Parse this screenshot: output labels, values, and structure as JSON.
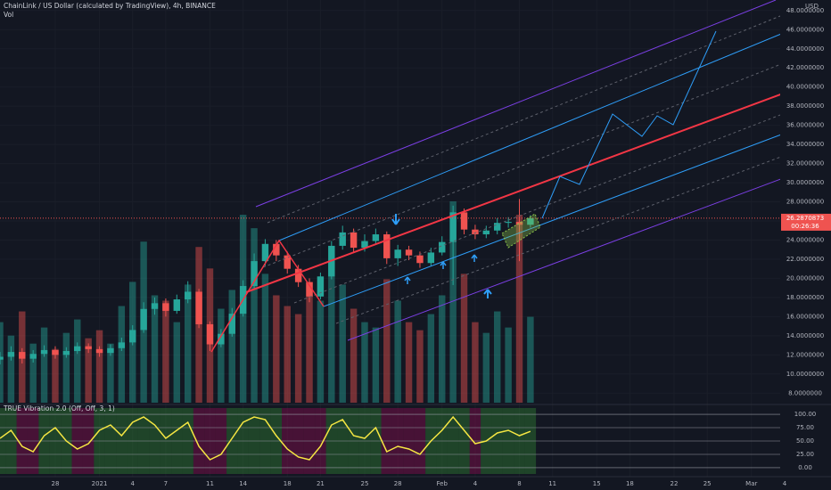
{
  "chart_data": {
    "type": "candlestick",
    "title": "ChainLink / US Dollar (calculated by TradingView), 4h, BINANCE",
    "volume_label": "Vol",
    "currency": "USD",
    "xlim": [
      -5,
      70.2
    ],
    "xticks": [
      {
        "value": 0,
        "label": "28"
      },
      {
        "value": 4,
        "label": "2021"
      },
      {
        "value": 7,
        "label": "4"
      },
      {
        "value": 10,
        "label": "7"
      },
      {
        "value": 14,
        "label": "11"
      },
      {
        "value": 17,
        "label": "14"
      },
      {
        "value": 21,
        "label": "18"
      },
      {
        "value": 24,
        "label": "21"
      },
      {
        "value": 28,
        "label": "25"
      },
      {
        "value": 31,
        "label": "28"
      },
      {
        "value": 35,
        "label": "Feb"
      },
      {
        "value": 38,
        "label": "4"
      },
      {
        "value": 42,
        "label": "8"
      },
      {
        "value": 45,
        "label": "11"
      },
      {
        "value": 49,
        "label": "15"
      },
      {
        "value": 52,
        "label": "18"
      },
      {
        "value": 56,
        "label": "22"
      },
      {
        "value": 59,
        "label": "25"
      },
      {
        "value": 63,
        "label": "Mar"
      },
      {
        "value": 66,
        "label": "4"
      }
    ],
    "ylim": [
      7,
      49.1
    ],
    "yticks": [
      {
        "value": 8,
        "label": "8.0000000"
      },
      {
        "value": 10,
        "label": "10.0000000"
      },
      {
        "value": 12,
        "label": "12.0000000"
      },
      {
        "value": 14,
        "label": "14.0000000"
      },
      {
        "value": 16,
        "label": "16.0000000"
      },
      {
        "value": 18,
        "label": "18.0000000"
      },
      {
        "value": 20,
        "label": "20.0000000"
      },
      {
        "value": 22,
        "label": "22.0000000"
      },
      {
        "value": 24,
        "label": "24.0000000"
      },
      {
        "value": 26,
        "label": "26.0000000"
      },
      {
        "value": 28,
        "label": "28.0000000"
      },
      {
        "value": 30,
        "label": "30.0000000"
      },
      {
        "value": 32,
        "label": "32.0000000"
      },
      {
        "value": 34,
        "label": "34.0000000"
      },
      {
        "value": 36,
        "label": "36.0000000"
      },
      {
        "value": 38,
        "label": "38.0000000"
      },
      {
        "value": 40,
        "label": "40.0000000"
      },
      {
        "value": 42,
        "label": "42.0000000"
      },
      {
        "value": 44,
        "label": "44.0000000"
      },
      {
        "value": 46,
        "label": "46.0000000"
      },
      {
        "value": 48,
        "label": "48.0000000"
      }
    ],
    "x": [
      -5,
      -4,
      -3,
      -2,
      -1,
      0,
      1,
      2,
      3,
      4,
      5,
      6,
      7,
      8,
      9,
      10,
      11,
      12,
      13,
      14,
      15,
      16,
      17,
      18,
      19,
      20,
      21,
      22,
      23,
      24,
      25,
      26,
      27,
      28,
      29,
      30,
      31,
      32,
      33,
      34,
      35,
      36,
      37,
      38,
      39,
      40,
      41,
      42,
      43
    ],
    "open": [
      11.5,
      11.8,
      12.3,
      11.6,
      12.1,
      12.5,
      12.0,
      12.4,
      12.9,
      12.6,
      12.2,
      12.7,
      13.3,
      14.6,
      16.8,
      17.4,
      16.6,
      17.8,
      18.6,
      15.2,
      13.1,
      14.2,
      16.3,
      19.2,
      21.8,
      23.6,
      22.4,
      21.0,
      19.6,
      18.1,
      20.2,
      23.4,
      24.8,
      23.2,
      23.9,
      24.6,
      22.1,
      23.0,
      22.4,
      21.6,
      22.7,
      23.8,
      26.9,
      25.1,
      24.6,
      25.0,
      25.8,
      25.9,
      25.6
    ],
    "high": [
      12.3,
      12.9,
      12.7,
      12.5,
      13.0,
      12.9,
      12.8,
      13.3,
      13.2,
      12.9,
      13.1,
      13.8,
      15.1,
      17.5,
      18.0,
      17.9,
      18.3,
      19.7,
      18.9,
      15.5,
      14.7,
      16.9,
      19.8,
      22.6,
      24.1,
      24.0,
      22.8,
      21.4,
      20.0,
      20.6,
      23.9,
      25.5,
      25.2,
      24.6,
      25.2,
      24.9,
      23.5,
      23.4,
      22.8,
      23.2,
      24.4,
      27.6,
      27.3,
      25.6,
      25.5,
      26.3,
      26.4,
      28.3,
      26.6
    ],
    "low": [
      11.0,
      11.4,
      11.1,
      11.2,
      11.8,
      11.6,
      11.7,
      12.1,
      12.2,
      11.8,
      11.9,
      12.4,
      13.0,
      14.3,
      16.2,
      16.0,
      16.3,
      17.4,
      14.8,
      12.4,
      12.8,
      13.9,
      16.0,
      18.8,
      21.3,
      21.8,
      20.5,
      19.1,
      17.5,
      17.8,
      19.9,
      23.0,
      22.7,
      22.8,
      23.5,
      21.5,
      21.3,
      21.9,
      21.1,
      21.3,
      22.4,
      19.3,
      24.6,
      24.1,
      24.2,
      24.6,
      25.3,
      21.8,
      25.3
    ],
    "close": [
      11.8,
      12.3,
      11.6,
      12.1,
      12.5,
      12.0,
      12.4,
      12.9,
      12.6,
      12.2,
      12.7,
      13.3,
      14.6,
      16.8,
      17.4,
      16.6,
      17.8,
      18.6,
      15.2,
      13.1,
      14.2,
      16.3,
      19.2,
      21.8,
      23.6,
      22.4,
      21.0,
      19.6,
      18.1,
      20.2,
      23.4,
      24.8,
      23.2,
      23.9,
      24.6,
      22.1,
      23.0,
      22.4,
      21.6,
      22.7,
      23.8,
      26.9,
      25.1,
      24.6,
      25.0,
      25.8,
      25.9,
      25.6,
      26.2870873
    ],
    "volume": [
      30,
      25,
      34,
      22,
      28,
      20,
      26,
      31,
      24,
      27,
      22,
      36,
      45,
      60,
      40,
      38,
      30,
      44,
      58,
      50,
      35,
      42,
      70,
      65,
      48,
      40,
      36,
      33,
      45,
      38,
      52,
      44,
      35,
      30,
      28,
      46,
      38,
      30,
      27,
      33,
      40,
      75,
      48,
      30,
      26,
      34,
      28,
      70,
      32
    ],
    "volume_ylim": [
      0,
      150
    ],
    "last_price": 26.2870873,
    "countdown": "00:26:36",
    "colors": {
      "up": "#26a69a",
      "down": "#ef5350"
    },
    "oscillator": {
      "title": "TRUE Vibration 2.0 (Off, Off, 3, 1)",
      "color": "#f5e642",
      "ylim": [
        -11.7,
        111.7
      ],
      "yticks": [
        {
          "value": 0,
          "label": "0.00"
        },
        {
          "value": 25,
          "label": "25.00"
        },
        {
          "value": 50,
          "label": "50.00"
        },
        {
          "value": 75,
          "label": "75.00"
        },
        {
          "value": 100,
          "label": "100.00"
        }
      ],
      "values": [
        55,
        70,
        40,
        30,
        60,
        75,
        50,
        35,
        45,
        70,
        80,
        60,
        85,
        95,
        80,
        55,
        70,
        85,
        40,
        15,
        25,
        55,
        85,
        95,
        90,
        60,
        35,
        20,
        15,
        40,
        80,
        90,
        60,
        55,
        75,
        30,
        40,
        35,
        25,
        50,
        70,
        95,
        70,
        45,
        50,
        65,
        70,
        60,
        68
      ]
    }
  }
}
